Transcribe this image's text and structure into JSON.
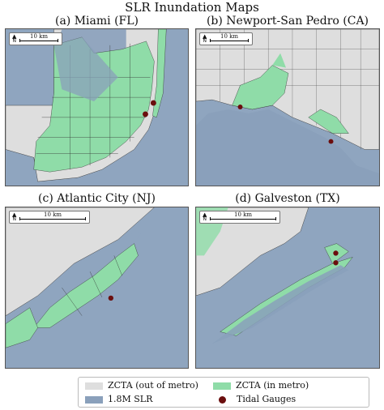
{
  "figure_title": "SLR Inundation Maps",
  "panels": [
    {
      "title": "(a) Miami (FL)",
      "scale": "10 km",
      "north": "N"
    },
    {
      "title": "(b) Newport-San Pedro (CA)",
      "scale": "10 km",
      "north": "N"
    },
    {
      "title": "(c) Atlantic City (NJ)",
      "scale": "10 km",
      "north": "N"
    },
    {
      "title": "(d) Galveston (TX)",
      "scale": "10 km",
      "north": "N"
    }
  ],
  "legend": {
    "zcta_out": {
      "label": "ZCTA (out of metro)",
      "color": "#dedede"
    },
    "slr": {
      "label": "1.8M SLR",
      "color": "#8aa0bb"
    },
    "zcta_in": {
      "label": "ZCTA (in metro)",
      "color": "#8fdca8"
    },
    "gauges": {
      "label": "Tidal Gauges",
      "color": "#6b0e0e"
    }
  },
  "colors": {
    "ocean": "#8fa5bf",
    "land_out": "#dedede",
    "land_in": "#8fdca8",
    "slr": "#8aa0bb",
    "gauge": "#6b0e0e"
  }
}
